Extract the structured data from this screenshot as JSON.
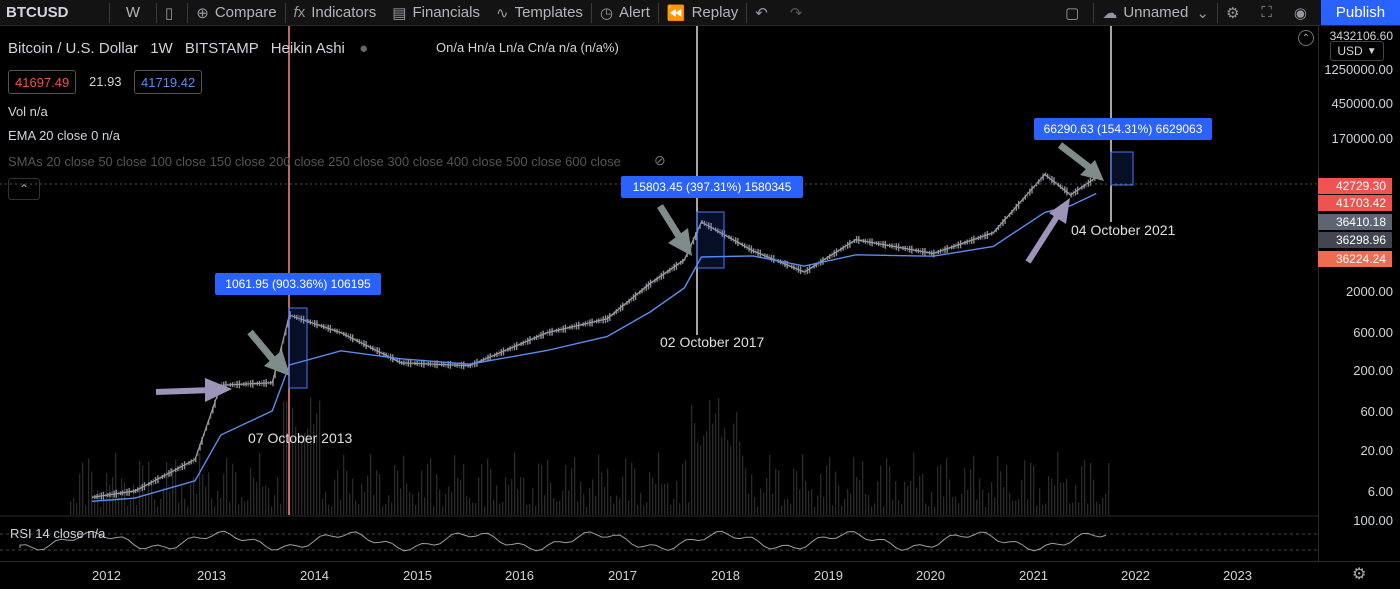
{
  "toolbar": {
    "symbol": "BTCUSD",
    "interval": "W",
    "compare": "Compare",
    "indicators": "Indicators",
    "financials": "Financials",
    "templates": "Templates",
    "alert": "Alert",
    "replay": "Replay",
    "layout_name": "Unnamed",
    "publish": "Publish"
  },
  "legend": {
    "title": "Bitcoin / U.S. Dollar",
    "interval": "1W",
    "exchange": "BITSTAMP",
    "chart_style": "Heikin Ashi",
    "ohlc": "On/a Hn/a Ln/a Cn/a n/a (n/a%)",
    "bid": "41697.49",
    "spread": "21.93",
    "ask": "41719.42"
  },
  "indicators": {
    "vol": "Vol  n/a",
    "ema": "EMA 20 close 0  n/a",
    "smas": "SMAs 20 close 50 close 100 close 150 close 200 close 250 close 300 close 400 close 500 close 600 close",
    "rsi": "RSI 14 close  n/a"
  },
  "price_scale": {
    "currency": "USD",
    "ticks": [
      "3432106.60",
      "1250000.00",
      "450000.00",
      "170000.00",
      "2000.00",
      "600.00",
      "200.00",
      "60.00",
      "20.00",
      "6.00",
      "100.00"
    ],
    "labels": [
      {
        "text": "42729.30",
        "color": "#f05350"
      },
      {
        "text": "41703.42",
        "color": "#ef5350"
      },
      {
        "text": "36410.18",
        "color": "#5d6474"
      },
      {
        "text": "36298.96",
        "color": "#434651"
      },
      {
        "text": "36224.24",
        "color": "#ef6c50"
      }
    ]
  },
  "annotations": [
    {
      "box": "1061.95 (903.36%) 106195",
      "date": "07 October 2013"
    },
    {
      "box": "15803.45 (397.31%) 1580345",
      "date": "02 October 2017"
    },
    {
      "box": "66290.63 (154.31%) 6629063",
      "date": "04 October 2021"
    }
  ],
  "time_axis": [
    "2012",
    "2013",
    "2014",
    "2015",
    "2016",
    "2017",
    "2018",
    "2019",
    "2020",
    "2021",
    "2022",
    "2023"
  ],
  "colors": {
    "accent": "#2962ff",
    "line_2013": "#ff8a80",
    "line_2017": "#ffffff",
    "arrow_gray": "#7f8c8a",
    "arrow_purple": "#9e93b8"
  },
  "chart_data": {
    "type": "line",
    "title": "Bitcoin / U.S. Dollar",
    "scale": "log",
    "x": [
      "2012-01",
      "2012-06",
      "2013-01",
      "2013-04",
      "2013-10",
      "2013-12",
      "2014-06",
      "2015-01",
      "2015-09",
      "2016-06",
      "2017-01",
      "2017-06",
      "2017-10",
      "2017-12",
      "2018-06",
      "2018-12",
      "2019-06",
      "2020-03",
      "2020-10",
      "2021-04",
      "2021-07",
      "2021-10"
    ],
    "y": [
      5,
      6,
      15,
      130,
      140,
      1000,
      600,
      250,
      230,
      600,
      900,
      2500,
      5000,
      15000,
      6500,
      3500,
      9000,
      6000,
      11000,
      60000,
      33000,
      55000
    ],
    "ylim": [
      3,
      3432106.6
    ]
  }
}
